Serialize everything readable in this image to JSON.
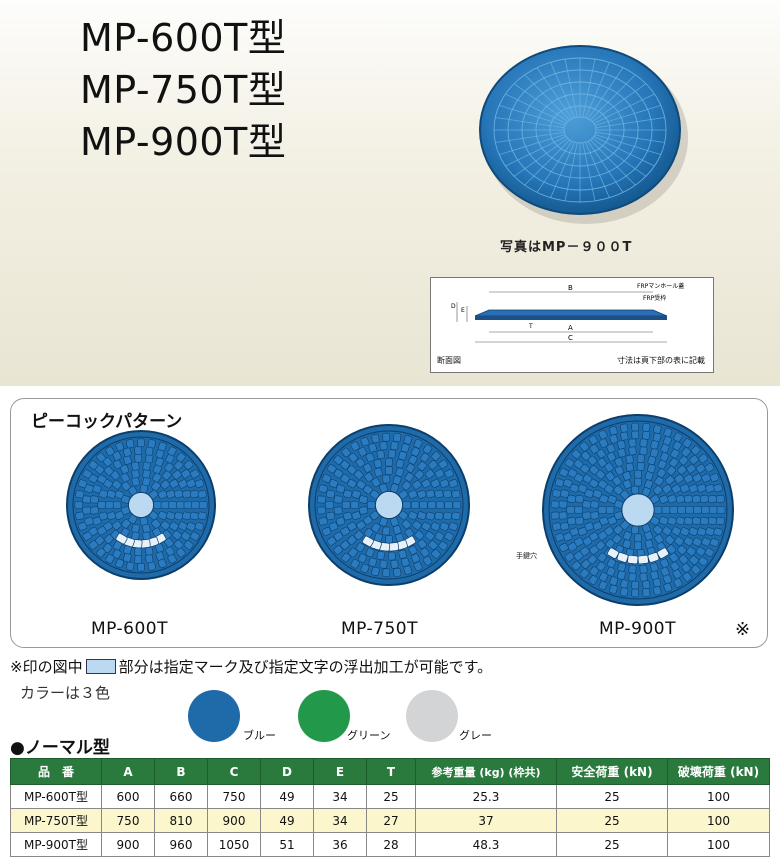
{
  "titles": [
    "MP-600T型",
    "MP-750T型",
    "MP-900T型"
  ],
  "photo_caption": "写真はMP－９００T",
  "diagram": {
    "labels": {
      "b": "B",
      "a": "A",
      "c": "C",
      "d": "D",
      "e": "E",
      "t": "T",
      "frp_lid": "FRPマンホール蓋",
      "frp_frame": "FRP受枠"
    },
    "section_label": "断面図",
    "dimension_note": "寸法は頁下部の表に記載"
  },
  "peacock": {
    "title": "ピーコックパターン",
    "models": [
      "MP-600T",
      "MP-750T",
      "MP-900T"
    ],
    "hand_hole_label": "手鍵穴",
    "asterisk": "※"
  },
  "note": {
    "prefix": "※印の図中",
    "suffix": "部分は指定マーク及び指定文字の浮出加工が可能です。"
  },
  "colors": {
    "title": "カラーは３色",
    "items": [
      {
        "name": "ブルー",
        "hex": "#1f6aa8"
      },
      {
        "name": "グリーン",
        "hex": "#22994a"
      },
      {
        "name": "グレー",
        "hex": "#d3d4d6"
      }
    ]
  },
  "normal_title": "●ノーマル型",
  "table": {
    "headers": [
      "品　番",
      "A",
      "B",
      "C",
      "D",
      "E",
      "T",
      "参考重量 (kg) (枠共)",
      "安全荷重 (kN)",
      "破壊荷重 (kN)"
    ],
    "rows": [
      [
        "MP-600T型",
        "600",
        "660",
        "750",
        "49",
        "34",
        "25",
        "25.3",
        "25",
        "100"
      ],
      [
        "MP-750T型",
        "750",
        "810",
        "900",
        "49",
        "34",
        "27",
        "37",
        "25",
        "100"
      ],
      [
        "MP-900T型",
        "900",
        "960",
        "1050",
        "51",
        "36",
        "28",
        "48.3",
        "25",
        "100"
      ]
    ]
  }
}
